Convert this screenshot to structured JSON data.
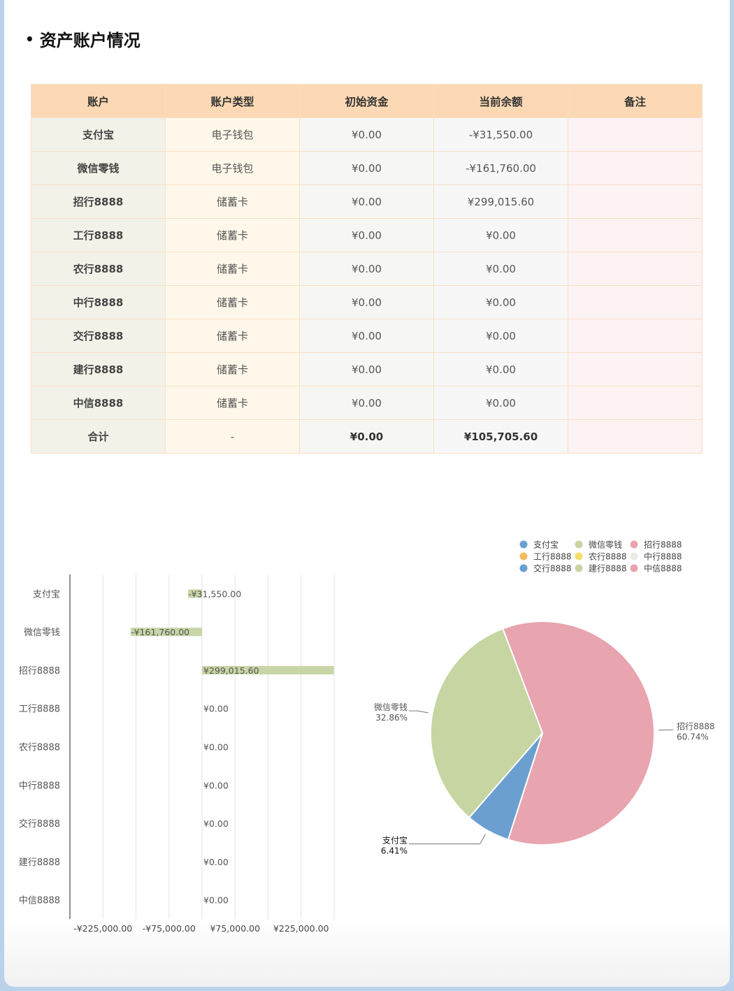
{
  "title": "资产账户情况",
  "table": {
    "headers": [
      "账户",
      "账户类型",
      "初始资金",
      "当前余额",
      "备注"
    ],
    "rows": [
      [
        "支付宝",
        "电子钱包",
        "¥0.00",
        "-¥31,550.00",
        ""
      ],
      [
        "微信零钱",
        "电子钱包",
        "¥0.00",
        "-¥161,760.00",
        ""
      ],
      [
        "招行8888",
        "储蓄卡",
        "¥0.00",
        "¥299,015.60",
        ""
      ],
      [
        "工行8888",
        "储蓄卡",
        "¥0.00",
        "¥0.00",
        ""
      ],
      [
        "农行8888",
        "储蓄卡",
        "¥0.00",
        "¥0.00",
        ""
      ],
      [
        "中行8888",
        "储蓄卡",
        "¥0.00",
        "¥0.00",
        ""
      ],
      [
        "交行8888",
        "储蓄卡",
        "¥0.00",
        "¥0.00",
        ""
      ],
      [
        "建行8888",
        "储蓄卡",
        "¥0.00",
        "¥0.00",
        ""
      ],
      [
        "中信8888",
        "储蓄卡",
        "¥0.00",
        "¥0.00",
        ""
      ]
    ],
    "total": [
      "合计",
      "-",
      "¥0.00",
      "¥105,705.60",
      ""
    ]
  },
  "chart_data": [
    {
      "type": "bar",
      "orientation": "horizontal",
      "categories": [
        "支付宝",
        "微信零钱",
        "招行8888",
        "工行8888",
        "农行8888",
        "中行8888",
        "交行8888",
        "建行8888",
        "中信8888"
      ],
      "values": [
        -31550.0,
        -161760.0,
        299015.6,
        0,
        0,
        0,
        0,
        0,
        0
      ],
      "labels": [
        "-¥31,550.00",
        "-¥161,760.00",
        "¥299,015.60",
        "¥0.00",
        "¥0.00",
        "¥0.00",
        "¥0.00",
        "¥0.00",
        "¥0.00"
      ],
      "x_ticks": [
        -225000,
        -75000,
        75000,
        225000
      ],
      "x_tick_labels": [
        "-¥225,000.00",
        "-¥75,000.00",
        "¥75,000.00",
        "¥225,000.00"
      ],
      "xlim": [
        -300000,
        300000
      ],
      "grid": true,
      "bar_color": "#c8d5a6"
    },
    {
      "type": "pie",
      "slices": [
        {
          "name": "招行8888",
          "percent": 60.74,
          "label": "60.74%",
          "color": "#e8a4af"
        },
        {
          "name": "支付宝",
          "percent": 6.41,
          "label": "6.41%",
          "color": "#6a9fd0"
        },
        {
          "name": "微信零钱",
          "percent": 32.86,
          "label": "32.86%",
          "color": "#c6d5a2"
        }
      ],
      "legend": [
        {
          "name": "支付宝",
          "color": "#6a9fd0"
        },
        {
          "name": "微信零钱",
          "color": "#c6d5a2"
        },
        {
          "name": "招行8888",
          "color": "#e8a4af"
        },
        {
          "name": "工行8888",
          "color": "#f2bb60"
        },
        {
          "name": "农行8888",
          "color": "#f3df6c"
        },
        {
          "name": "中行8888",
          "color": "#ecebe4"
        },
        {
          "name": "交行8888",
          "color": "#6a9fd0"
        },
        {
          "name": "建行8888",
          "color": "#c6d5a2"
        },
        {
          "name": "中信8888",
          "color": "#e8a4af"
        }
      ],
      "legend_position": "top-right"
    }
  ]
}
